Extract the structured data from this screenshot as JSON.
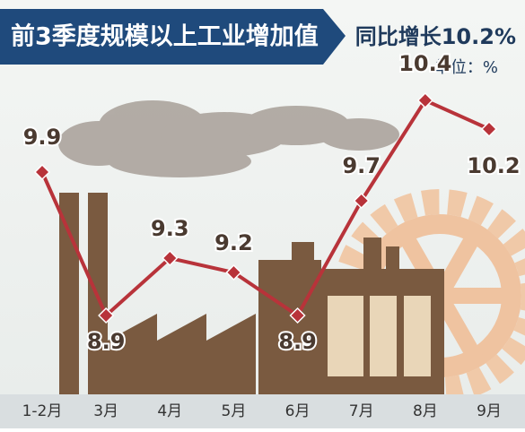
{
  "chart_data": {
    "type": "line",
    "title": "前3季度规模以上工业增加值",
    "subtitle": "同比增长10.2%",
    "unit": "单位：%",
    "categories": [
      "1-2月",
      "3月",
      "4月",
      "5月",
      "6月",
      "7月",
      "8月",
      "9月"
    ],
    "series": [
      {
        "name": "同比增长",
        "color": "#b8333a",
        "values": [
          9.9,
          8.9,
          9.3,
          9.2,
          8.9,
          9.7,
          10.4,
          10.2
        ]
      }
    ],
    "ylim": [
      8.6,
      10.6
    ]
  }
}
